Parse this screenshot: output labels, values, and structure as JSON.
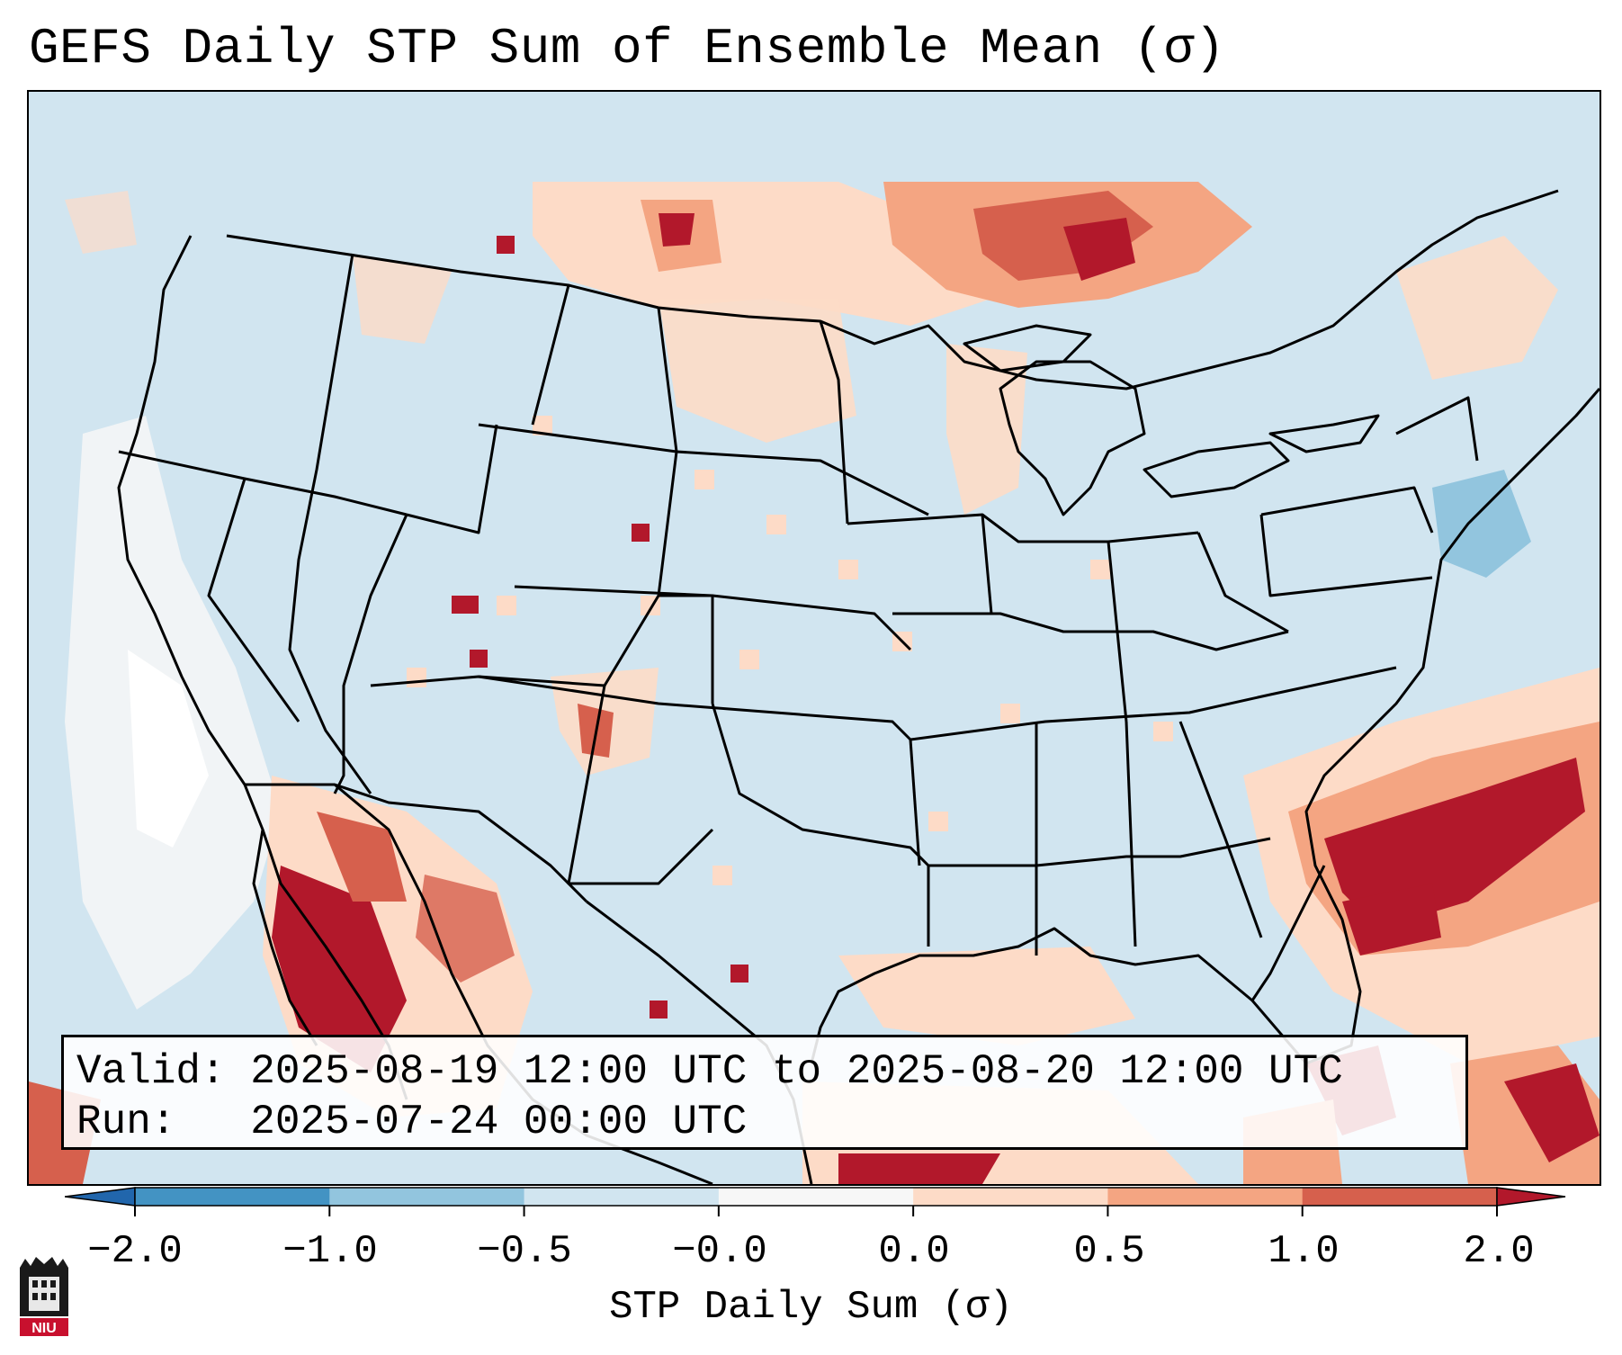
{
  "title": "GEFS Daily STP Sum of Ensemble Mean (σ)",
  "valid": {
    "label": "Valid:",
    "value": "2025-08-19 12:00 UTC to 2025-08-20 12:00 UTC"
  },
  "run": {
    "label": "Run:",
    "value": "2025-07-24 00:00 UTC"
  },
  "colorbar": {
    "title": "STP Daily Sum (σ)",
    "ticks": [
      "−2.0",
      "−1.0",
      "−0.5",
      "−0.0",
      "0.0",
      "0.5",
      "1.0",
      "2.0"
    ],
    "colors": [
      "#2166ac",
      "#4393c3",
      "#92c5de",
      "#d1e5f0",
      "#f7f7f7",
      "#fddbc7",
      "#f4a582",
      "#d6604d",
      "#b2182b"
    ]
  },
  "map": {
    "background_color": "#d1e5f0",
    "region": "Continental United States",
    "notable_features": [
      "Gulf of Mexico",
      "Great Lakes",
      "Atlantic Ocean",
      "Pacific Ocean",
      "Mexico",
      "Canada"
    ]
  },
  "logo": {
    "text": "NIU"
  }
}
